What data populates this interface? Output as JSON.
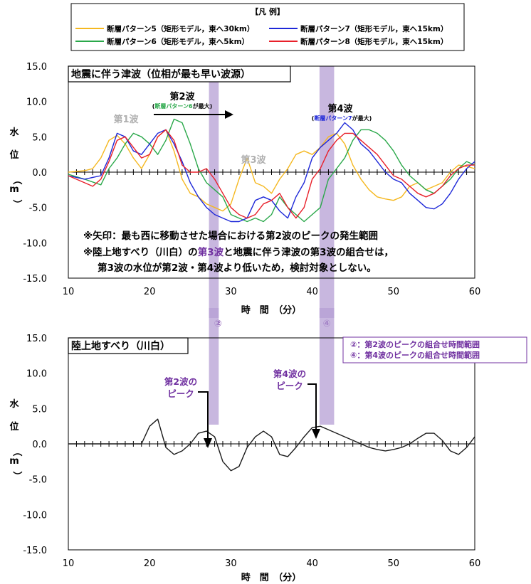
{
  "colors": {
    "pattern5": "#f5b820",
    "pattern6": "#2aa84a",
    "pattern7": "#1e28d8",
    "pattern8": "#e8202a",
    "landslide": "#1a1a1a",
    "band": "#b59fd4",
    "purple_text": "#7030a0",
    "green_text": "#2aa84a",
    "blue_text": "#1e28d8",
    "gray_text": "#b0b0b0"
  },
  "legend": {
    "title": "【凡 例】",
    "items": [
      {
        "key": "pattern5",
        "label": "断層パターン5（矩形モデル，東へ30km）"
      },
      {
        "key": "pattern7",
        "label": "断層パターン7（矩形モデル，東へ15km）"
      },
      {
        "key": "pattern6",
        "label": "断層パターン6（矩形モデル，東へ5km）"
      },
      {
        "key": "pattern8",
        "label": "断層パターン8（矩形モデル，東へ15km）"
      }
    ]
  },
  "band_legend": {
    "line1": "②：第2波のピークの組合せ時間範囲",
    "line2": "④：第4波のピークの組合せ時間範囲"
  },
  "chart_data": [
    {
      "type": "line",
      "title": "地震に伴う津波（位相が最も早い波源）",
      "xlabel": "時　間　（分）",
      "ylabel": "水位（m）",
      "xlim": [
        10,
        60
      ],
      "ylim": [
        -15,
        15
      ],
      "x_ticks": [
        "10",
        "20",
        "30",
        "40",
        "50",
        "60"
      ],
      "y_ticks": [
        "15.0",
        "10.0",
        "5.0",
        "0.0",
        "-5.0",
        "-10.0",
        "-15.0"
      ],
      "series": [
        {
          "name": "断層パターン5（矩形モデル，東へ30km）",
          "color_key": "pattern5",
          "x": [
            10,
            12,
            13,
            14,
            15,
            16,
            17,
            18,
            19,
            20,
            21,
            22,
            23,
            24,
            25,
            26,
            27,
            28,
            29,
            30,
            31,
            32,
            33,
            34,
            35,
            36,
            37,
            38,
            39,
            40,
            41,
            42,
            43,
            44,
            45,
            46,
            47,
            48,
            49,
            50,
            51,
            52,
            53,
            54,
            55,
            56,
            57,
            58,
            59,
            60
          ],
          "y": [
            0,
            0.2,
            0.5,
            2.0,
            4.5,
            5.2,
            4.0,
            2.0,
            0.5,
            2.5,
            5.0,
            6.0,
            3.0,
            -1.0,
            -3.0,
            -3.5,
            -4.5,
            -5.0,
            -5.5,
            -4.5,
            -1.0,
            2.0,
            -1.5,
            -2.0,
            -3.0,
            -1.0,
            0.5,
            2.5,
            3.0,
            2.5,
            3.5,
            5.0,
            5.5,
            4.0,
            1.0,
            -1.0,
            -2.5,
            -3.5,
            -3.8,
            -4.0,
            -3.5,
            -2.0,
            -1.5,
            -2.5,
            -2.0,
            -1.5,
            0.0,
            1.0,
            0.8,
            0.5
          ]
        },
        {
          "name": "断層パターン6（矩形モデル，東へ5km）",
          "color_key": "pattern6",
          "x": [
            10,
            12,
            14,
            15,
            16,
            17,
            18,
            19,
            20,
            21,
            22,
            23,
            24,
            25,
            26,
            27,
            28,
            29,
            30,
            31,
            32,
            33,
            34,
            35,
            36,
            37,
            38,
            39,
            40,
            41,
            42,
            43,
            44,
            45,
            46,
            47,
            48,
            49,
            50,
            51,
            52,
            53,
            54,
            55,
            56,
            57,
            58,
            59,
            60
          ],
          "y": [
            -0.3,
            -1.0,
            -1.8,
            0.5,
            2.0,
            4.0,
            5.5,
            5.0,
            4.0,
            2.5,
            4.5,
            7.5,
            7.0,
            4.0,
            0.5,
            -1.5,
            -2.5,
            -3.5,
            -6.0,
            -6.5,
            -7.0,
            -6.5,
            -7.0,
            -6.0,
            -3.5,
            -5.0,
            -6.0,
            -7.0,
            -6.0,
            -5.0,
            -1.0,
            0.5,
            2.0,
            4.5,
            6.0,
            6.0,
            5.5,
            4.5,
            3.0,
            1.0,
            -0.5,
            -1.5,
            -2.5,
            -3.0,
            -2.0,
            -1.0,
            0.5,
            1.5,
            1.0
          ]
        },
        {
          "name": "断層パターン7（矩形モデル，東へ15km）",
          "color_key": "pattern7",
          "x": [
            10,
            12,
            14,
            15,
            16,
            17,
            18,
            19,
            20,
            21,
            22,
            23,
            24,
            25,
            26,
            27,
            28,
            29,
            30,
            31,
            32,
            33,
            34,
            35,
            36,
            37,
            38,
            39,
            40,
            41,
            42,
            43,
            44,
            45,
            46,
            47,
            48,
            49,
            50,
            51,
            52,
            53,
            54,
            55,
            56,
            57,
            58,
            59,
            60
          ],
          "y": [
            -0.5,
            -1.0,
            -0.5,
            2.0,
            5.5,
            5.0,
            3.0,
            2.5,
            4.0,
            5.5,
            6.0,
            4.0,
            1.5,
            -1.5,
            -3.5,
            -5.0,
            -6.0,
            -6.5,
            -7.0,
            -7.0,
            -6.5,
            -4.0,
            -3.5,
            -4.0,
            -5.5,
            -6.5,
            -3.5,
            -1.5,
            2.0,
            3.5,
            4.5,
            5.5,
            7.0,
            6.0,
            4.0,
            3.0,
            1.5,
            0.0,
            -1.0,
            -1.5,
            -3.0,
            -4.0,
            -5.0,
            -5.2,
            -4.5,
            -3.0,
            -1.0,
            0.5,
            1.5
          ]
        },
        {
          "name": "断層パターン8（矩形モデル，東へ15km）",
          "color_key": "pattern8",
          "x": [
            10,
            12,
            13,
            14,
            15,
            16,
            17,
            18,
            19,
            20,
            21,
            22,
            23,
            24,
            25,
            26,
            27,
            28,
            29,
            30,
            31,
            32,
            33,
            34,
            35,
            36,
            37,
            38,
            39,
            40,
            41,
            42,
            43,
            44,
            45,
            46,
            47,
            48,
            49,
            50,
            51,
            52,
            53,
            54,
            55,
            56,
            57,
            58,
            59,
            60
          ],
          "y": [
            -0.5,
            -1.5,
            -2.0,
            -1.0,
            1.5,
            4.5,
            5.0,
            3.5,
            2.0,
            2.5,
            5.0,
            6.0,
            4.5,
            1.0,
            0.0,
            0.0,
            0.5,
            -1.0,
            -3.0,
            -5.0,
            -6.0,
            -6.5,
            -6.0,
            -4.5,
            -4.0,
            -3.0,
            -5.0,
            -6.5,
            -5.0,
            -1.0,
            0.5,
            3.0,
            4.5,
            5.5,
            5.5,
            4.5,
            3.5,
            2.5,
            1.0,
            -0.5,
            -1.0,
            -2.0,
            -3.0,
            -3.5,
            -3.0,
            -2.0,
            -0.5,
            0.5,
            1.0,
            1.0
          ]
        }
      ],
      "bands": [
        {
          "x_range": [
            27.3,
            28.5
          ],
          "label": "②"
        },
        {
          "x_range": [
            40.9,
            42.7
          ],
          "label": "④"
        }
      ],
      "annotations": {
        "wave1": "第1波",
        "wave2": "第2波",
        "wave2_note_colored": "断層パターン6",
        "wave2_note_suffix": "が最大",
        "wave3": "第3波",
        "wave4": "第4波",
        "wave4_note_colored": "断層パターン7",
        "wave4_note_suffix": "が最大",
        "note1": "※矢印：最も西に移動させた場合における第2波のピークの発生範囲",
        "note2_pre": "※陸上地すべり（川白）の",
        "note2_colored": "第3波",
        "note2_post": "と地震に伴う津波の第3波の組合せは，",
        "note3": "第3波の水位が第2波・第4波より低いため，検討対象としない。"
      }
    },
    {
      "type": "line",
      "title": "陸上地すべり（川白）",
      "xlabel": "時　間　（分）",
      "ylabel": "水位（m）",
      "xlim": [
        10,
        60
      ],
      "ylim": [
        -15,
        15
      ],
      "x_ticks": [
        "10",
        "20",
        "30",
        "40",
        "50",
        "60"
      ],
      "y_ticks": [
        "15.0",
        "10.0",
        "5.0",
        "0.0",
        "-5.0",
        "-10.0",
        "-15.0"
      ],
      "series": [
        {
          "name": "",
          "color_key": "landslide",
          "x": [
            10,
            19,
            20,
            21,
            22,
            23,
            24,
            25,
            26,
            27,
            28,
            29,
            30,
            31,
            32,
            33,
            34,
            35,
            36,
            37,
            38,
            39,
            40,
            41,
            42,
            43,
            44,
            45,
            46,
            47,
            48,
            49,
            50,
            51,
            52,
            53,
            54,
            55,
            56,
            57,
            58,
            59,
            60
          ],
          "y": [
            0,
            0,
            2.5,
            3.5,
            -0.5,
            -1.5,
            -1.0,
            0.0,
            1.5,
            1.8,
            1.0,
            -2.5,
            -3.8,
            -3.2,
            -0.5,
            1.0,
            1.8,
            1.0,
            -1.5,
            -1.8,
            -0.5,
            1.0,
            2.3,
            2.5,
            2.0,
            1.5,
            1.0,
            0.5,
            0.0,
            -0.5,
            -0.8,
            -1.0,
            -0.8,
            -0.5,
            0.0,
            0.8,
            1.5,
            1.5,
            0.5,
            -1.0,
            -1.5,
            -0.5,
            1.0
          ]
        }
      ],
      "bands": [
        {
          "x_range": [
            27.3,
            28.5
          ],
          "label": "②"
        },
        {
          "x_range": [
            40.9,
            42.7
          ],
          "label": "④"
        }
      ],
      "annotations": {
        "peak2_line1": "第2波の",
        "peak2_line2": "ピーク",
        "peak4_line1": "第4波の",
        "peak4_line2": "ピーク"
      }
    }
  ]
}
